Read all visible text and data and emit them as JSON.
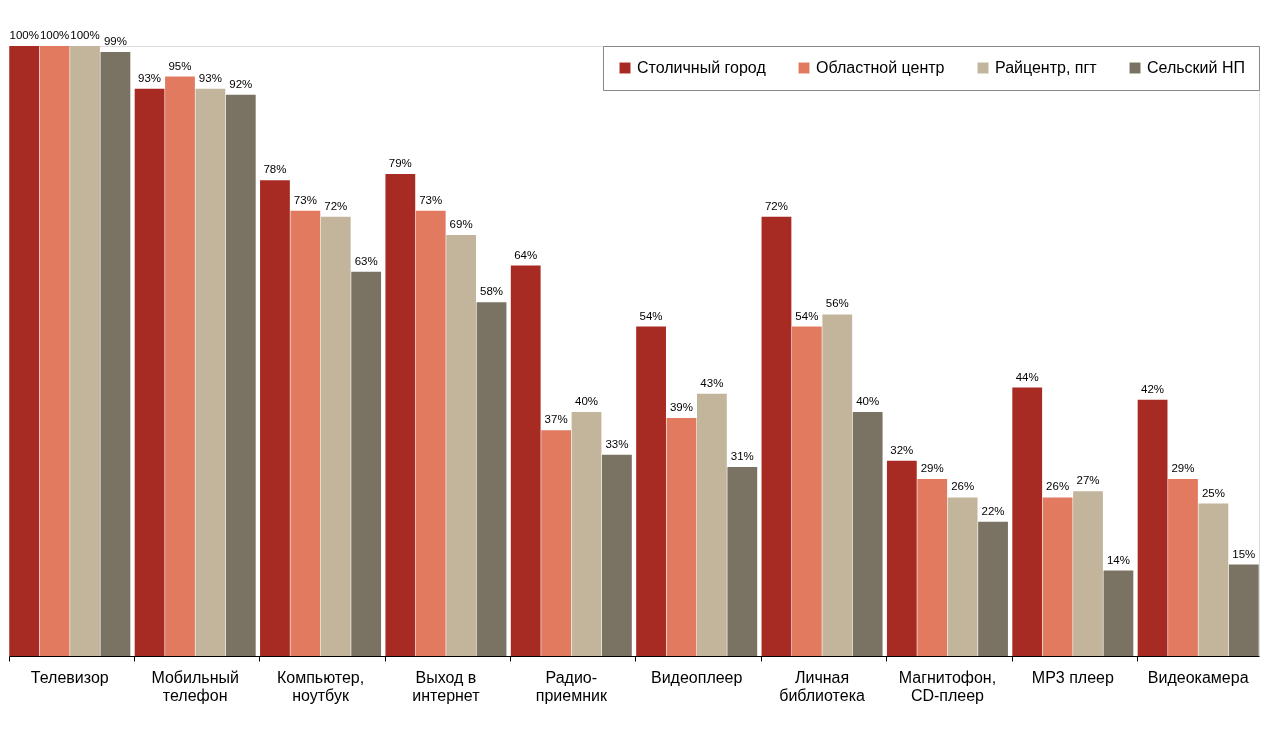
{
  "chart_data": {
    "type": "bar",
    "categories": [
      "Телевизор",
      "Мобильный\nтелефон",
      "Компьютер,\nноутбук",
      "Выход в\nинтернет",
      "Радио-\nприемник",
      "Видеоплеер",
      "Личная\nбиблиотека",
      "Магнитофон,\nCD-плеер",
      "MP3 плеер",
      "Видеокамера"
    ],
    "series": [
      {
        "name": "Столичный город",
        "color": "#a82b23",
        "values": [
          100,
          93,
          78,
          79,
          64,
          54,
          72,
          32,
          44,
          42
        ],
        "value_labels": [
          "100%",
          "93%",
          "78%",
          "79%",
          "64%",
          "54%",
          "72%",
          "32%",
          "44%",
          "42%"
        ]
      },
      {
        "name": "Областной центр",
        "color": "#e27a60",
        "values": [
          100,
          95,
          73,
          73,
          37,
          39,
          54,
          29,
          26,
          29
        ],
        "value_labels": [
          "100%",
          "95%",
          "73%",
          "73%",
          "37%",
          "39%",
          "54%",
          "29%",
          "26%",
          "29%"
        ]
      },
      {
        "name": "Райцентр, пгт",
        "color": "#c3b59b",
        "values": [
          100,
          93,
          72,
          69,
          40,
          43,
          56,
          26,
          27,
          25
        ],
        "value_labels": [
          "100%",
          "93%",
          "72%",
          "69%",
          "40%",
          "43%",
          "56%",
          "26%",
          "27%",
          "25%"
        ]
      },
      {
        "name": "Сельский НП",
        "color": "#7a7363",
        "values": [
          99,
          92,
          63,
          58,
          33,
          31,
          40,
          22,
          14,
          15
        ],
        "value_labels": [
          "99%",
          "92%",
          "63%",
          "58%",
          "33%",
          "31%",
          "40%",
          "22%",
          "14%",
          "15%"
        ]
      }
    ],
    "legend": "top right",
    "grid": false
  }
}
